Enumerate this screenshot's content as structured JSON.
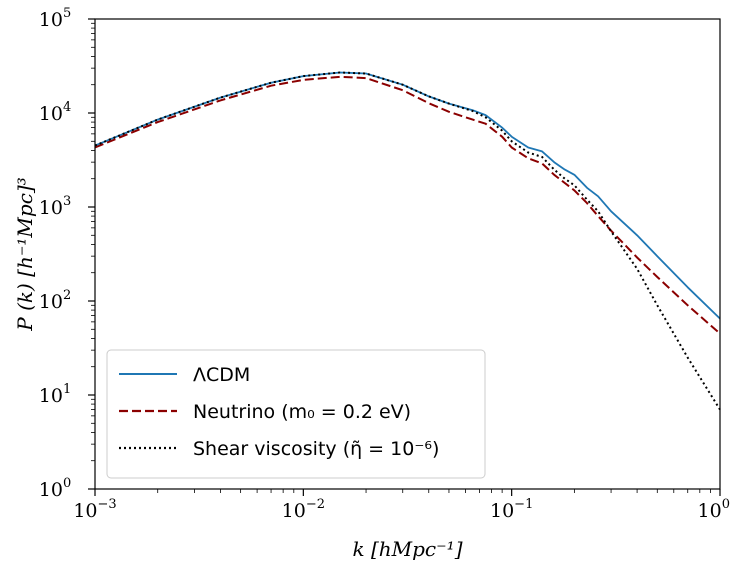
{
  "chart_data": {
    "type": "line",
    "title": "",
    "xlabel": "k [hMpc⁻¹]",
    "ylabel": "P (k) [h⁻¹Mpc]³",
    "xscale": "log",
    "yscale": "log",
    "xlim": [
      0.001,
      1
    ],
    "ylim": [
      1,
      100000
    ],
    "grid": false,
    "legend_position": "lower-left",
    "x_ticks": [
      {
        "value": 0.001,
        "base": "10",
        "exp": "−3"
      },
      {
        "value": 0.01,
        "base": "10",
        "exp": "−2"
      },
      {
        "value": 0.1,
        "base": "10",
        "exp": "−1"
      },
      {
        "value": 1,
        "base": "10",
        "exp": "0"
      }
    ],
    "y_ticks": [
      {
        "value": 1,
        "base": "10",
        "exp": "0"
      },
      {
        "value": 10,
        "base": "10",
        "exp": "1"
      },
      {
        "value": 100,
        "base": "10",
        "exp": "2"
      },
      {
        "value": 1000,
        "base": "10",
        "exp": "3"
      },
      {
        "value": 10000,
        "base": "10",
        "exp": "4"
      },
      {
        "value": 100000,
        "base": "10",
        "exp": "5"
      }
    ],
    "series": [
      {
        "name": "ΛCDM",
        "color": "#1f77b4",
        "style": "solid",
        "x": [
          0.001,
          0.002,
          0.004,
          0.007,
          0.01,
          0.015,
          0.02,
          0.03,
          0.04,
          0.05,
          0.065,
          0.075,
          0.09,
          0.1,
          0.12,
          0.14,
          0.16,
          0.18,
          0.2,
          0.23,
          0.26,
          0.3,
          0.4,
          0.5,
          0.7,
          1.0
        ],
        "y": [
          4500,
          8500,
          14600,
          21000,
          24700,
          27000,
          26300,
          20000,
          15000,
          12600,
          10700,
          9500,
          7000,
          5600,
          4300,
          3900,
          3000,
          2500,
          2200,
          1600,
          1300,
          900,
          500,
          300,
          140,
          65
        ]
      },
      {
        "name": "Neutrino (m₀ = 0.2 eV)",
        "color": "#8b0000",
        "style": "dashed",
        "x": [
          0.001,
          0.002,
          0.004,
          0.007,
          0.01,
          0.015,
          0.02,
          0.03,
          0.04,
          0.05,
          0.065,
          0.075,
          0.09,
          0.1,
          0.12,
          0.14,
          0.16,
          0.18,
          0.2,
          0.23,
          0.26,
          0.3,
          0.4,
          0.5,
          0.7,
          1.0
        ],
        "y": [
          4300,
          8000,
          13600,
          19500,
          22500,
          24300,
          23500,
          17500,
          12700,
          10300,
          8500,
          7700,
          5600,
          4300,
          3300,
          2900,
          2200,
          1800,
          1500,
          1100,
          800,
          560,
          290,
          180,
          90,
          45
        ]
      },
      {
        "name": "Shear viscosity (η̃ = 10⁻⁶)",
        "color": "#000000",
        "style": "dotted",
        "x": [
          0.001,
          0.002,
          0.004,
          0.007,
          0.01,
          0.015,
          0.02,
          0.03,
          0.04,
          0.05,
          0.065,
          0.075,
          0.09,
          0.1,
          0.12,
          0.14,
          0.16,
          0.18,
          0.2,
          0.23,
          0.26,
          0.3,
          0.4,
          0.5,
          0.7,
          1.0
        ],
        "y": [
          4500,
          8500,
          14600,
          21000,
          24700,
          27000,
          26300,
          20000,
          15000,
          12600,
          10500,
          9000,
          6500,
          5000,
          3800,
          3400,
          2500,
          2000,
          1700,
          1200,
          900,
          550,
          220,
          90,
          25,
          7
        ]
      }
    ]
  }
}
